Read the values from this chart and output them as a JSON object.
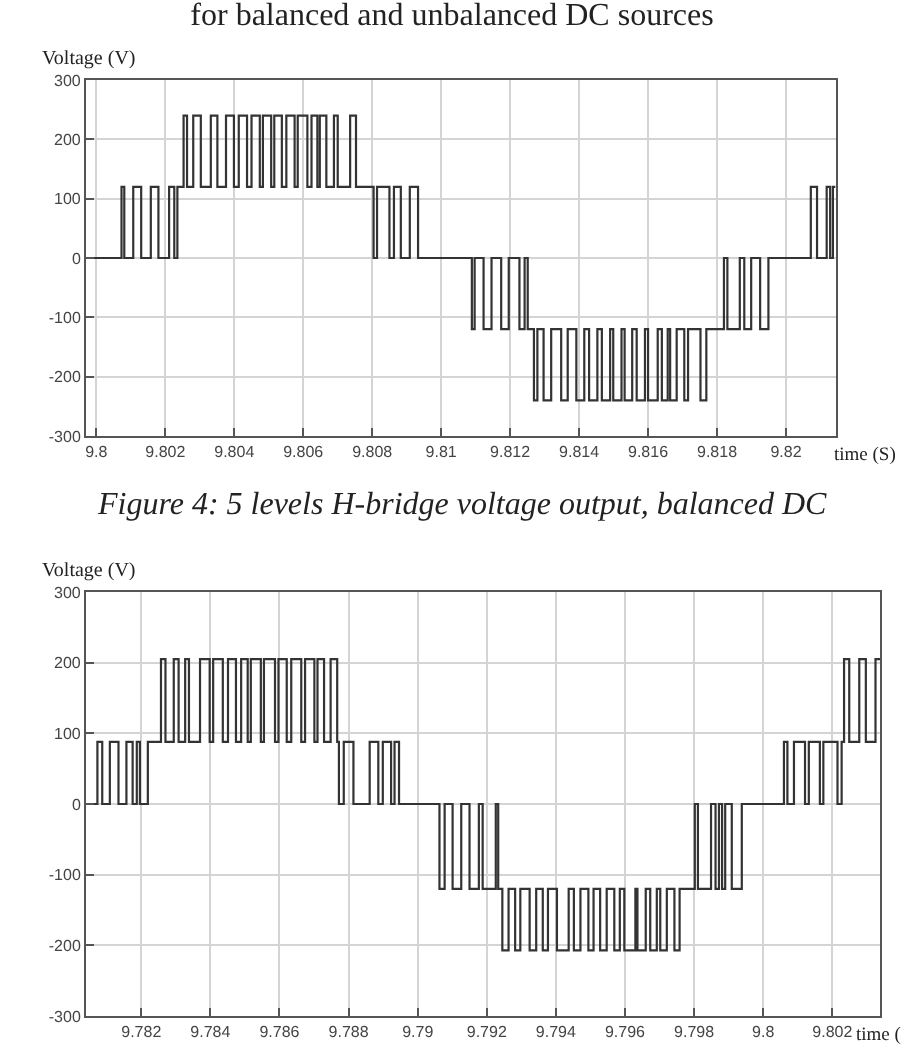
{
  "chart_data": [
    {
      "type": "step",
      "title": "for balanced and unbalanced DC sources",
      "annotations": [
        "Figure 4: 5 levels H-bridge voltage output, balanced DC"
      ],
      "xlabel": "time (S)",
      "ylabel": "Voltage (V)",
      "color": "#333333",
      "grid": true,
      "xlim": [
        9.7997,
        9.82145
      ],
      "xticks": [
        9.8,
        9.802,
        9.804,
        9.806,
        9.808,
        9.81,
        9.812,
        9.814,
        9.816,
        9.818,
        9.82
      ],
      "ylim": [
        -300,
        300
      ],
      "yticks": [
        -300,
        -200,
        -100,
        0,
        100,
        200,
        300
      ],
      "x": [
        9.7997,
        9.80073,
        9.80081,
        9.80107,
        9.8013,
        9.80158,
        9.8018,
        9.80211,
        9.80226,
        9.80235,
        9.80253,
        9.80263,
        9.80281,
        9.80303,
        9.80332,
        9.80351,
        9.80376,
        9.80399,
        9.80413,
        9.80437,
        9.8045,
        9.80474,
        9.80483,
        9.80507,
        9.80516,
        9.80538,
        9.80551,
        9.80575,
        9.80584,
        9.80612,
        9.80624,
        9.80641,
        9.80648,
        9.80667,
        9.80689,
        9.807,
        9.80736,
        9.80753,
        9.80804,
        9.80814,
        9.8085,
        9.80863,
        9.80883,
        9.80909,
        9.80933,
        9.81089,
        9.81097,
        9.81123,
        9.81146,
        9.81174,
        9.81196,
        9.81227,
        9.81242,
        9.81251,
        9.81269,
        9.81279,
        9.81297,
        9.81319,
        9.81348,
        9.81367,
        9.81392,
        9.81415,
        9.81429,
        9.81453,
        9.81466,
        9.8149,
        9.81499,
        9.81523,
        9.81532,
        9.81554,
        9.81567,
        9.81591,
        9.816,
        9.81628,
        9.8164,
        9.81657,
        9.81664,
        9.81683,
        9.81705,
        9.81716,
        9.81752,
        9.81769,
        9.8182,
        9.8183,
        9.81866,
        9.81879,
        9.81899,
        9.81925,
        9.81949,
        9.82072,
        9.8209,
        9.82118,
        9.82128,
        9.82136,
        9.82143
      ],
      "values": [
        0,
        120,
        0,
        120,
        0,
        120,
        0,
        120,
        0,
        120,
        240,
        120,
        240,
        120,
        240,
        120,
        240,
        120,
        240,
        120,
        240,
        120,
        240,
        120,
        240,
        120,
        240,
        120,
        240,
        120,
        240,
        120,
        240,
        120,
        240,
        120,
        240,
        120,
        0,
        120,
        0,
        120,
        0,
        120,
        0,
        -120,
        0,
        -120,
        0,
        -120,
        0,
        -120,
        0,
        -120,
        -240,
        -120,
        -240,
        -120,
        -240,
        -120,
        -240,
        -120,
        -240,
        -120,
        -240,
        -120,
        -240,
        -120,
        -240,
        -120,
        -240,
        -120,
        -240,
        -120,
        -240,
        -120,
        -240,
        -120,
        -240,
        -120,
        -240,
        -120,
        0,
        -120,
        0,
        -120,
        0,
        -120,
        0,
        120,
        0,
        120,
        0,
        120,
        120
      ]
    },
    {
      "type": "step",
      "xlabel": "time (",
      "ylabel": "Voltage (V)",
      "color": "#333333",
      "grid": true,
      "xlim": [
        9.7804,
        9.80338
      ],
      "xticks": [
        9.782,
        9.784,
        9.786,
        9.788,
        9.79,
        9.792,
        9.794,
        9.796,
        9.798,
        9.8,
        9.802
      ],
      "ylim": [
        -300,
        300
      ],
      "yticks": [
        -300,
        -200,
        -100,
        0,
        100,
        200,
        300
      ],
      "x": [
        9.7804,
        9.78073,
        9.78087,
        9.78109,
        9.78134,
        9.78157,
        9.78175,
        9.78187,
        9.78196,
        9.78219,
        9.78257,
        9.7827,
        9.78294,
        9.78308,
        9.78327,
        9.78338,
        9.7837,
        9.78398,
        9.78408,
        9.78436,
        9.78451,
        9.78474,
        9.78489,
        9.78508,
        9.78517,
        9.78546,
        9.78555,
        9.78587,
        9.78597,
        9.78621,
        9.78634,
        9.78663,
        9.78674,
        9.78701,
        9.7871,
        9.78729,
        9.78748,
        9.78767,
        9.78772,
        9.78786,
        9.78814,
        9.78861,
        9.78886,
        9.78899,
        9.78923,
        9.78933,
        9.78946,
        9.79063,
        9.79078,
        9.79101,
        9.79126,
        9.7915,
        9.79177,
        9.79188,
        9.79226,
        9.79233,
        9.79245,
        9.79263,
        9.79282,
        9.79297,
        9.79324,
        9.79343,
        9.79362,
        9.79377,
        9.79403,
        9.79437,
        9.79452,
        9.79471,
        9.79494,
        9.79509,
        9.79528,
        9.79547,
        9.79569,
        9.79585,
        9.79598,
        9.7963,
        9.79636,
        9.7966,
        9.79673,
        9.79692,
        9.79702,
        9.79721,
        9.79743,
        9.79758,
        9.79802,
        9.79811,
        9.79849,
        9.79862,
        9.79872,
        9.79881,
        9.7989,
        9.79909,
        9.79938,
        9.8006,
        9.8007,
        9.80089,
        9.80121,
        9.80132,
        9.80164,
        9.80174,
        9.80215,
        9.80227,
        9.80234,
        9.80249,
        9.80278,
        9.80297,
        9.80325,
        9.80338
      ],
      "values": [
        0,
        88,
        0,
        88,
        0,
        88,
        0,
        88,
        0,
        88,
        205,
        88,
        205,
        88,
        205,
        88,
        205,
        88,
        205,
        88,
        205,
        88,
        205,
        88,
        205,
        88,
        205,
        88,
        205,
        88,
        205,
        88,
        205,
        88,
        205,
        88,
        205,
        88,
        0,
        88,
        0,
        88,
        0,
        88,
        0,
        88,
        0,
        -120,
        0,
        -120,
        0,
        -120,
        0,
        -120,
        0,
        -120,
        -207,
        -120,
        -207,
        -120,
        -207,
        -120,
        -207,
        -120,
        -207,
        -120,
        -207,
        -120,
        -207,
        -120,
        -207,
        -120,
        -207,
        -120,
        -207,
        -120,
        -207,
        -120,
        -207,
        -120,
        -207,
        -120,
        -207,
        -120,
        0,
        -120,
        0,
        -120,
        0,
        -120,
        0,
        -120,
        0,
        88,
        0,
        88,
        0,
        88,
        0,
        88,
        0,
        88,
        205,
        88,
        205,
        88,
        205,
        205
      ]
    }
  ]
}
